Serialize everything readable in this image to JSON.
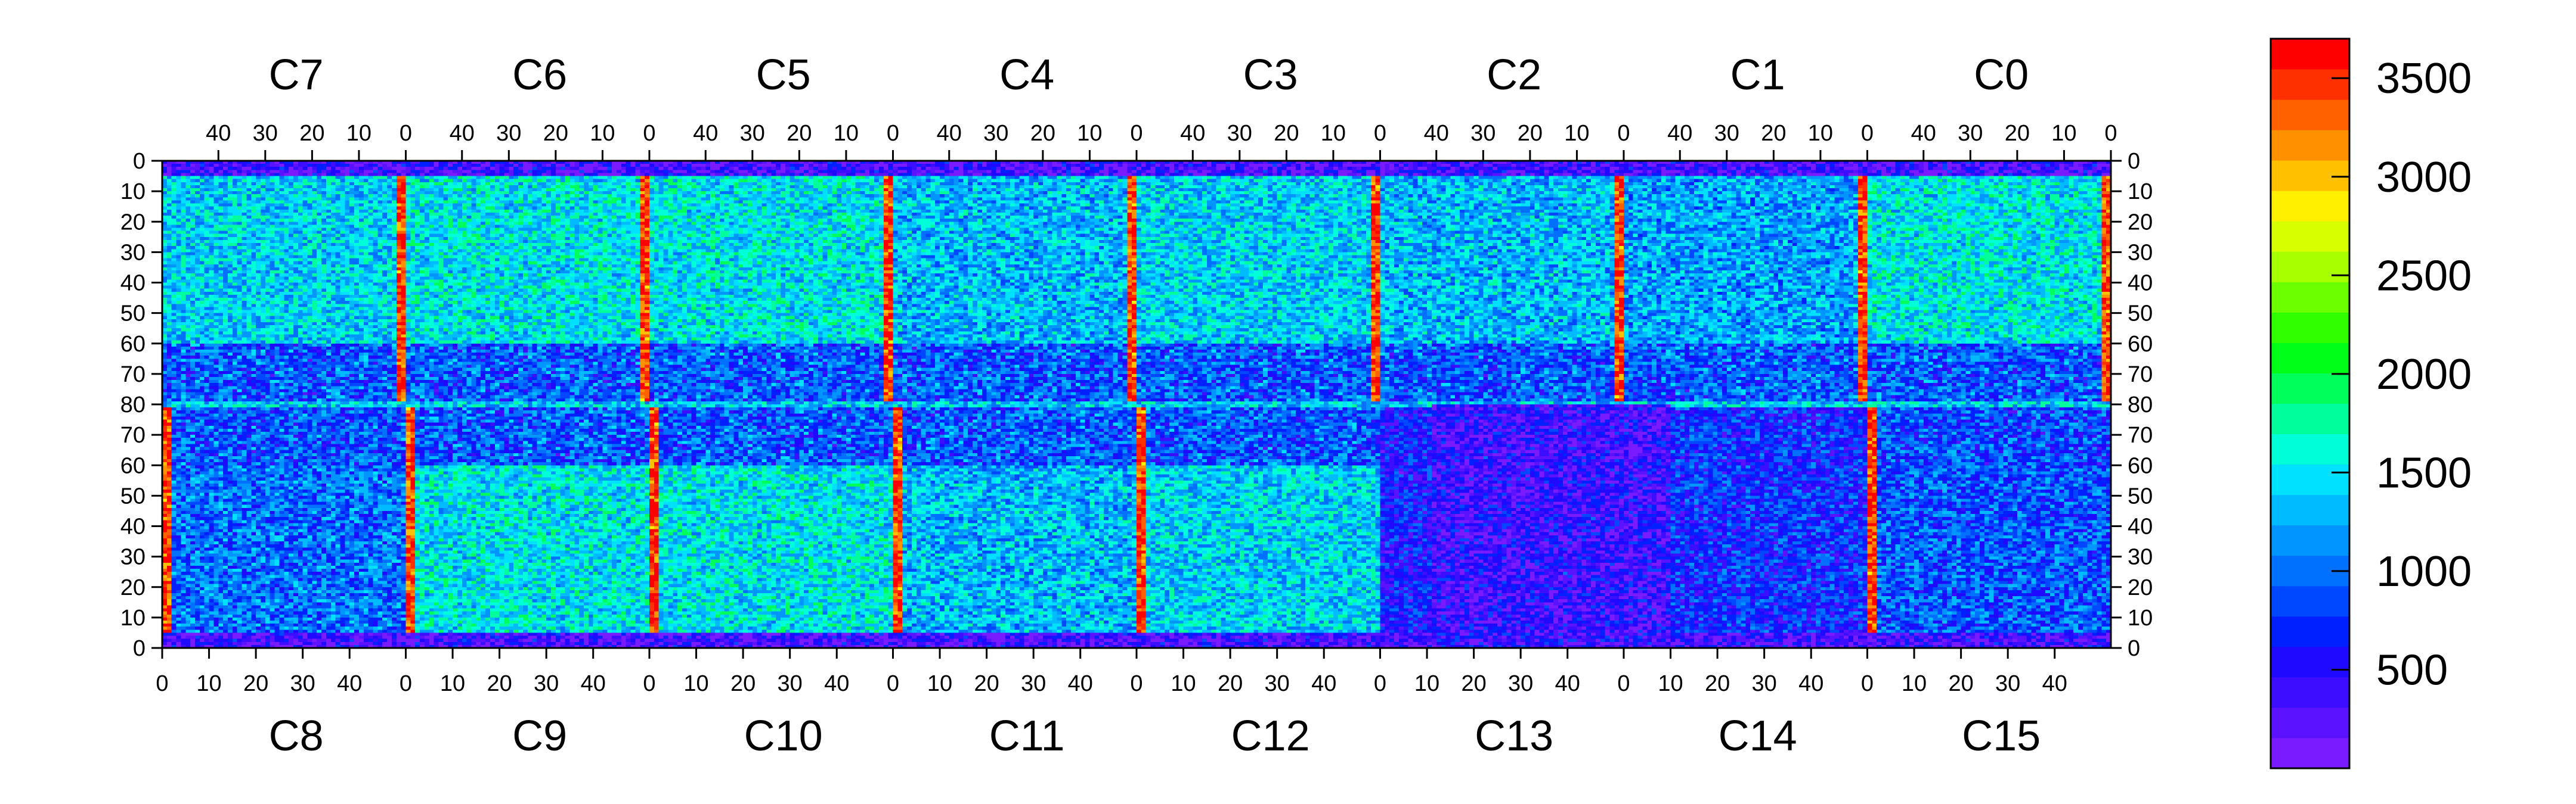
{
  "chart_data": {
    "type": "heatmap",
    "title": "",
    "top_chips": [
      "C7",
      "C6",
      "C5",
      "C4",
      "C3",
      "C2",
      "C1",
      "C0"
    ],
    "bottom_chips": [
      "C8",
      "C9",
      "C10",
      "C11",
      "C12",
      "C13",
      "C14",
      "C15"
    ],
    "top_column_ticks": [
      "40",
      "30",
      "20",
      "10",
      "0"
    ],
    "bottom_column_ticks": [
      "0",
      "10",
      "20",
      "30",
      "40"
    ],
    "row_ticks": [
      "0",
      "10",
      "20",
      "30",
      "40",
      "50",
      "60",
      "70",
      "80",
      "70",
      "60",
      "50",
      "40",
      "30",
      "20",
      "10",
      "0"
    ],
    "columns_per_chip": 52,
    "rows_per_half": 80,
    "colorbar": {
      "min": 0,
      "max": 3700,
      "tick_values": [
        500,
        1000,
        1500,
        2000,
        2500,
        3000,
        3500
      ],
      "tick_labels": [
        "500",
        "1000",
        "1500",
        "2000",
        "2500",
        "3000",
        "3500"
      ],
      "palette": [
        "#7a1bff",
        "#5b13ff",
        "#3d0dff",
        "#1f0aff",
        "#0020ff",
        "#0048ff",
        "#0070ff",
        "#0095ff",
        "#00bbff",
        "#00e0ff",
        "#00ffd8",
        "#00ff9c",
        "#00ff5a",
        "#00ff18",
        "#30ff00",
        "#6cff00",
        "#a8ff00",
        "#d8ff00",
        "#fff000",
        "#ffc000",
        "#ff9000",
        "#ff6000",
        "#ff3000",
        "#ff0000"
      ]
    },
    "chip_level_estimates": [
      {
        "chip": "C7",
        "typical": 1400,
        "min": 300,
        "max": 3600
      },
      {
        "chip": "C6",
        "typical": 1500,
        "min": 300,
        "max": 3600
      },
      {
        "chip": "C5",
        "typical": 1500,
        "min": 300,
        "max": 3600
      },
      {
        "chip": "C4",
        "typical": 1300,
        "min": 300,
        "max": 3600
      },
      {
        "chip": "C3",
        "typical": 1400,
        "min": 300,
        "max": 3600
      },
      {
        "chip": "C2",
        "typical": 1300,
        "min": 300,
        "max": 3600
      },
      {
        "chip": "C1",
        "typical": 1200,
        "min": 300,
        "max": 3600
      },
      {
        "chip": "C0",
        "typical": 1500,
        "min": 300,
        "max": 3600
      },
      {
        "chip": "C8",
        "typical": 1000,
        "min": 200,
        "max": 3000
      },
      {
        "chip": "C9",
        "typical": 1500,
        "min": 300,
        "max": 3600
      },
      {
        "chip": "C10",
        "typical": 1500,
        "min": 300,
        "max": 3600
      },
      {
        "chip": "C11",
        "typical": 1300,
        "min": 300,
        "max": 3600
      },
      {
        "chip": "C12",
        "typical": 1400,
        "min": 300,
        "max": 3600
      },
      {
        "chip": "C13",
        "typical": 600,
        "min": 0,
        "max": 2000
      },
      {
        "chip": "C14",
        "typical": 700,
        "min": 0,
        "max": 2500
      },
      {
        "chip": "C15",
        "typical": 900,
        "min": 200,
        "max": 3000
      }
    ]
  }
}
